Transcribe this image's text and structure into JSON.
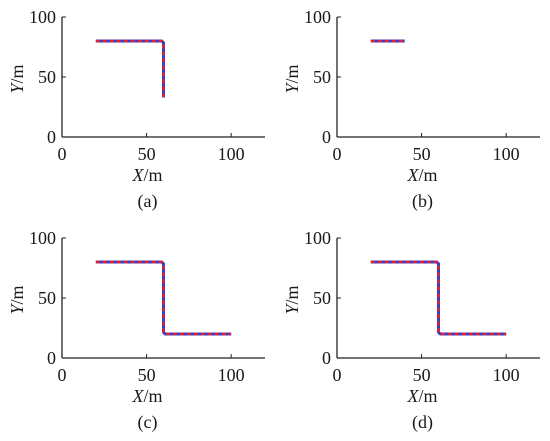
{
  "chart_data": [
    {
      "type": "line",
      "caption": "(a)",
      "xlabel_var": "X",
      "xlabel_unit": "/m",
      "ylabel_var": "Y",
      "ylabel_unit": "/m",
      "xlim": [
        0,
        120
      ],
      "ylim": [
        0,
        100
      ],
      "xticks": [
        0,
        50,
        100
      ],
      "yticks": [
        0,
        50,
        100
      ],
      "grid": false,
      "series": [
        {
          "color": "#2c3fd6",
          "style": "solid",
          "x": [
            20,
            59,
            60,
            60,
            60
          ],
          "y": [
            80,
            80,
            78.5,
            50,
            33
          ]
        },
        {
          "color": "#e8202a",
          "style": "dashed",
          "x": [
            20,
            59,
            60,
            60,
            60
          ],
          "y": [
            80,
            80,
            78.5,
            50,
            33
          ]
        }
      ]
    },
    {
      "type": "line",
      "caption": "(b)",
      "xlabel_var": "X",
      "xlabel_unit": "/m",
      "ylabel_var": "Y",
      "ylabel_unit": "/m",
      "xlim": [
        0,
        120
      ],
      "ylim": [
        0,
        100
      ],
      "xticks": [
        0,
        50,
        100
      ],
      "yticks": [
        0,
        50,
        100
      ],
      "grid": false,
      "series": [
        {
          "color": "#2c3fd6",
          "style": "solid",
          "x": [
            20,
            40
          ],
          "y": [
            80,
            80
          ]
        },
        {
          "color": "#e8202a",
          "style": "dashed",
          "x": [
            20,
            40
          ],
          "y": [
            80,
            80
          ]
        }
      ]
    },
    {
      "type": "line",
      "caption": "(c)",
      "xlabel_var": "X",
      "xlabel_unit": "/m",
      "ylabel_var": "Y",
      "ylabel_unit": "/m",
      "xlim": [
        0,
        120
      ],
      "ylim": [
        0,
        100
      ],
      "xticks": [
        0,
        50,
        100
      ],
      "yticks": [
        0,
        50,
        100
      ],
      "grid": false,
      "series": [
        {
          "color": "#2c3fd6",
          "style": "solid",
          "x": [
            20,
            59,
            60,
            60,
            61,
            100
          ],
          "y": [
            80,
            80,
            78.5,
            21.5,
            20,
            20
          ]
        },
        {
          "color": "#e8202a",
          "style": "dashed",
          "x": [
            20,
            59,
            60,
            60,
            61,
            100
          ],
          "y": [
            80,
            80,
            78.5,
            21.5,
            20,
            20
          ]
        }
      ]
    },
    {
      "type": "line",
      "caption": "(d)",
      "xlabel_var": "X",
      "xlabel_unit": "/m",
      "ylabel_var": "Y",
      "ylabel_unit": "/m",
      "xlim": [
        0,
        120
      ],
      "ylim": [
        0,
        100
      ],
      "xticks": [
        0,
        50,
        100
      ],
      "yticks": [
        0,
        50,
        100
      ],
      "grid": false,
      "series": [
        {
          "color": "#2c3fd6",
          "style": "solid",
          "x": [
            20,
            59,
            60,
            60,
            61,
            100
          ],
          "y": [
            80,
            80,
            78.5,
            21.5,
            20,
            20
          ]
        },
        {
          "color": "#e8202a",
          "style": "dashed",
          "x": [
            20,
            59,
            60,
            60,
            61,
            100
          ],
          "y": [
            80,
            80,
            78.5,
            21.5,
            20,
            20
          ]
        }
      ]
    }
  ]
}
